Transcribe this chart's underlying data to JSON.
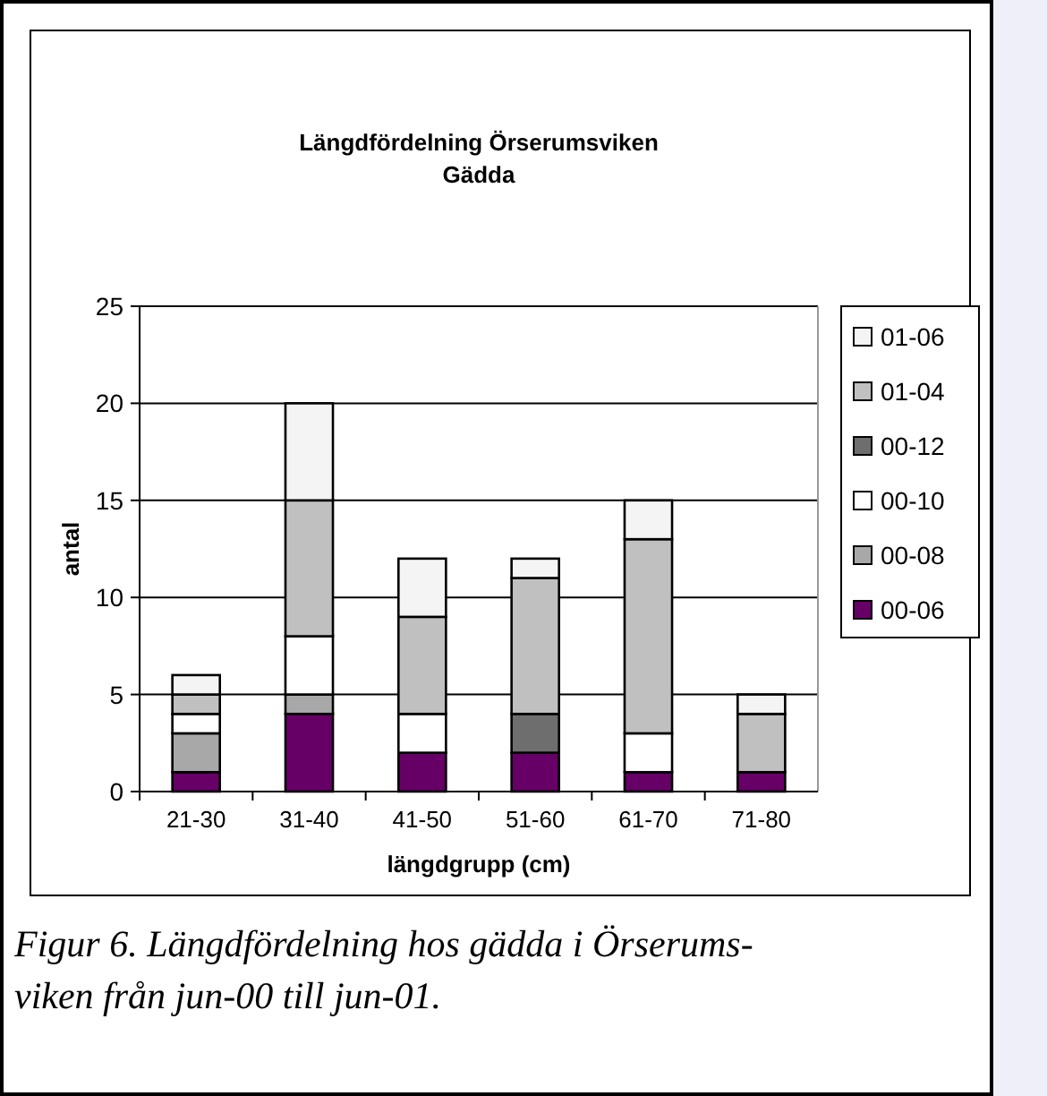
{
  "chart_data": {
    "type": "bar",
    "stacked": true,
    "title": "Längdfördelning Örserumsviken\nGädda",
    "xlabel": "längdgrupp (cm)",
    "ylabel": "antal",
    "categories": [
      "21-30",
      "31-40",
      "41-50",
      "51-60",
      "61-70",
      "71-80"
    ],
    "series": [
      {
        "name": "00-06",
        "color": "#660066",
        "values": [
          1,
          4,
          2,
          2,
          1,
          1
        ]
      },
      {
        "name": "00-08",
        "color": "#a8a8a8",
        "values": [
          2,
          1,
          0,
          0,
          0,
          0
        ]
      },
      {
        "name": "00-10",
        "color": "#ffffff",
        "values": [
          1,
          3,
          2,
          0,
          2,
          0
        ]
      },
      {
        "name": "00-12",
        "color": "#6e6e6e",
        "values": [
          0,
          0,
          0,
          2,
          0,
          0
        ]
      },
      {
        "name": "01-04",
        "color": "#c0c0c0",
        "values": [
          1,
          7,
          5,
          7,
          10,
          3
        ]
      },
      {
        "name": "01-06",
        "color": "#f4f4f4",
        "values": [
          1,
          5,
          3,
          1,
          2,
          1
        ]
      }
    ],
    "ylim": [
      0,
      25
    ],
    "yticks": [
      0,
      5,
      10,
      15,
      20,
      25
    ],
    "grid": "y",
    "legend": "right",
    "annotations": [
      "Figur 6. Längdfördelning hos gädda i Örserums-\nviken från jun-00 till jun-01."
    ]
  }
}
